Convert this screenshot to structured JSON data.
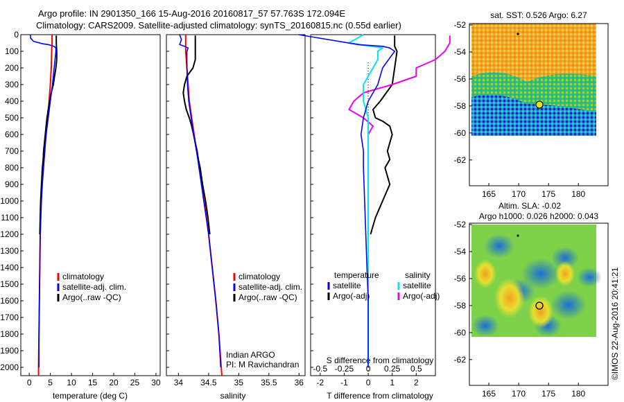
{
  "header": {
    "line1": "Argo profile: IN 2901350_166 15-Aug-2016 20160817_57 57.763S 172.094E",
    "line2": "Climatology: CARS2009. Satellite-adjusted climatology: synTS_20160815.nc (0.55d earlier)"
  },
  "colors": {
    "climatology": "#ff0000",
    "satellite": "#0000ff",
    "argo": "#000000",
    "sal_satellite": "#00e5ee",
    "sal_argo": "#ee00ee"
  },
  "depth_ticks": [
    "0",
    "100",
    "200",
    "300",
    "400",
    "500",
    "600",
    "700",
    "800",
    "900",
    "1000",
    "1100",
    "1200",
    "1300",
    "1400",
    "1500",
    "1600",
    "1700",
    "1800",
    "1900",
    "2000"
  ],
  "panels": {
    "temperature": {
      "xlabel": "temperature (deg C)",
      "xticks": [
        "0",
        "5",
        "10",
        "15",
        "20",
        "25",
        "30"
      ],
      "legend": [
        "climatology",
        "satellite-adj. clim.",
        "Argo(..raw -QC)"
      ]
    },
    "salinity": {
      "xlabel": "salinity",
      "xticks": [
        "34",
        "34.5",
        "35",
        "35.5",
        "36"
      ],
      "legend": [
        "climatology",
        "satellite-adj. clim.",
        "Argo(..raw -QC)"
      ],
      "note1": "Indian ARGO",
      "note2": "PI: M Ravichandran"
    },
    "difference": {
      "xlabel": "T difference from climatology",
      "xlabel2": "S difference from climatology",
      "xticks_T": [
        "-2",
        "-1",
        "0",
        "1",
        "2"
      ],
      "xticks_S": [
        "-0.5",
        "-0.25",
        "0",
        "0.25",
        "0.5"
      ],
      "legend_temp_title": "temperature",
      "legend_sal_title": "salinity",
      "legend_temp": [
        "satellite",
        "Argo(-adj)"
      ],
      "legend_sal": [
        "satellite",
        "Argo(-adj)"
      ]
    }
  },
  "maps": {
    "sst": {
      "title": "sat. SST: 0.526 Argo: 6.27",
      "yticks": [
        "-52",
        "-54",
        "-56",
        "-58",
        "-60",
        "-62"
      ],
      "xticks": [
        "165",
        "170",
        "175",
        "180"
      ]
    },
    "sla": {
      "title1": "Altim. SLA: -0.02",
      "title2": "Argo h1000: 0.026 h2000: 0.043",
      "yticks": [
        "-52",
        "-54",
        "-56",
        "-58",
        "-60",
        "-62"
      ],
      "xticks": [
        "165",
        "170",
        "175",
        "180"
      ]
    }
  },
  "credit": "©IMOS 22-Aug-2016 20:41:21",
  "chart_data": [
    {
      "type": "line",
      "title": "",
      "xlabel": "temperature (deg C)",
      "ylabel": "",
      "xlim": [
        -2,
        31
      ],
      "ylim": [
        2050,
        0
      ],
      "series": [
        {
          "name": "climatology",
          "depth": [
            0,
            50,
            100,
            200,
            300,
            400,
            500,
            600,
            700,
            800,
            900,
            1000,
            1200,
            1400,
            1600,
            1800,
            2000,
            2050
          ],
          "values": [
            5.4,
            5.4,
            5.3,
            5.2,
            5.0,
            4.7,
            4.4,
            4.0,
            3.6,
            3.3,
            3.0,
            2.8,
            2.6,
            2.5,
            2.4,
            2.3,
            2.2,
            2.2
          ]
        },
        {
          "name": "satellite-adj. clim.",
          "depth": [
            0,
            20,
            40,
            55,
            60,
            70,
            80,
            100,
            200,
            300,
            400,
            500,
            600,
            700,
            800,
            900,
            1000,
            1200,
            1400,
            1600,
            1800,
            2000
          ],
          "values": [
            0.3,
            0.3,
            1.0,
            3.2,
            4.6,
            5.8,
            6.3,
            6.3,
            5.9,
            5.5,
            5.0,
            4.5,
            4.0,
            3.7,
            3.4,
            3.1,
            2.9,
            2.6,
            2.5,
            2.4,
            2.3,
            2.3
          ]
        },
        {
          "name": "Argo(..raw -QC)",
          "depth": [
            5,
            50,
            100,
            150,
            200,
            250,
            300,
            350,
            400,
            450,
            500,
            550,
            600,
            650,
            700,
            750,
            800,
            900,
            1000,
            1100,
            1200
          ],
          "values": [
            6.4,
            6.4,
            6.5,
            6.5,
            6.3,
            6.0,
            5.7,
            5.2,
            4.8,
            4.5,
            4.2,
            4.0,
            3.8,
            3.6,
            3.4,
            3.3,
            3.1,
            2.9,
            2.7,
            2.6,
            2.5
          ]
        }
      ]
    },
    {
      "type": "line",
      "title": "",
      "xlabel": "salinity",
      "ylabel": "",
      "xlim": [
        33.8,
        36.1
      ],
      "ylim": [
        2050,
        0
      ],
      "series": [
        {
          "name": "climatology",
          "depth": [
            0,
            100,
            200,
            300,
            400,
            500,
            600,
            700,
            800,
            1000,
            1200,
            1400,
            1600,
            1800,
            2000,
            2050
          ],
          "values": [
            34.12,
            34.12,
            34.14,
            34.16,
            34.18,
            34.22,
            34.26,
            34.3,
            34.35,
            34.43,
            34.5,
            34.56,
            34.62,
            34.67,
            34.71,
            34.72
          ]
        },
        {
          "name": "satellite-adj. clim.",
          "depth": [
            0,
            30,
            60,
            70,
            80,
            100,
            200,
            300,
            400,
            500,
            600,
            700,
            800,
            1000,
            1200,
            1400,
            1600,
            1800,
            2000
          ],
          "values": [
            34.02,
            34.05,
            34.02,
            34.1,
            34.16,
            34.14,
            34.14,
            34.15,
            34.17,
            34.21,
            34.25,
            34.3,
            34.34,
            34.42,
            34.5,
            34.56,
            34.62,
            34.67,
            34.7
          ]
        },
        {
          "name": "Argo(..raw -QC)",
          "depth": [
            5,
            100,
            150,
            200,
            250,
            300,
            350,
            400,
            450,
            500,
            550,
            600,
            650,
            700,
            750,
            800,
            900,
            1000,
            1100,
            1200
          ],
          "values": [
            34.28,
            34.28,
            34.28,
            34.24,
            34.14,
            34.1,
            34.08,
            34.1,
            34.13,
            34.18,
            34.22,
            34.25,
            34.28,
            34.31,
            34.33,
            34.36,
            34.4,
            34.45,
            34.49,
            34.52
          ]
        }
      ]
    },
    {
      "type": "line",
      "title": "",
      "xlabel": "T difference from climatology",
      "ylabel": "",
      "xlim": [
        -2.4,
        2.8
      ],
      "ylim": [
        2050,
        0
      ],
      "series": [
        {
          "name": "temperature satellite",
          "depth": [
            0,
            60,
            70,
            80,
            100,
            200,
            300,
            400,
            500,
            600,
            700,
            800,
            1000,
            1200,
            1400,
            1600,
            1800,
            2000
          ],
          "values": [
            -2.9,
            -0.4,
            0.6,
            0.9,
            1.1,
            0.6,
            0.4,
            0.0,
            -0.2,
            -0.3,
            -0.2,
            -0.2,
            -0.15,
            -0.1,
            -0.05,
            0.0,
            0.0,
            0.0
          ]
        },
        {
          "name": "temperature Argo(-adj)",
          "depth": [
            5,
            70,
            100,
            200,
            300,
            400,
            450,
            500,
            520,
            550,
            600,
            650,
            700,
            750,
            800,
            900,
            1000,
            1100,
            1200
          ],
          "values": [
            1.1,
            1.1,
            1.2,
            1.1,
            1.0,
            0.5,
            0.2,
            0.3,
            0.6,
            0.9,
            1.0,
            0.9,
            0.8,
            0.9,
            0.7,
            0.9,
            0.6,
            0.3,
            0.1
          ]
        },
        {
          "name": "salinity satellite",
          "depth": [
            0,
            50,
            80,
            100,
            150,
            200,
            300,
            400,
            500,
            600,
            700,
            1000,
            1500,
            2000
          ],
          "values": [
            -0.05,
            -0.2,
            0.15,
            0.1,
            0.1,
            0.05,
            -0.05,
            -0.05,
            0.0,
            0.0,
            0.0,
            0.0,
            0.0,
            0.0
          ]
        },
        {
          "name": "salinity Argo(-adj)",
          "depth": [
            5,
            50,
            100,
            150,
            200,
            250,
            300,
            350,
            400,
            450,
            500,
            550,
            600,
            700,
            800,
            900,
            1000,
            1100,
            1200
          ],
          "values": [
            0.85,
            0.85,
            0.8,
            0.7,
            0.5,
            0.5,
            0.25,
            -0.05,
            -0.15,
            -0.2,
            -0.05,
            0.05,
            0.0,
            0.0,
            0.0,
            0.0,
            0.0,
            0.0,
            0.0
          ]
        }
      ]
    }
  ]
}
